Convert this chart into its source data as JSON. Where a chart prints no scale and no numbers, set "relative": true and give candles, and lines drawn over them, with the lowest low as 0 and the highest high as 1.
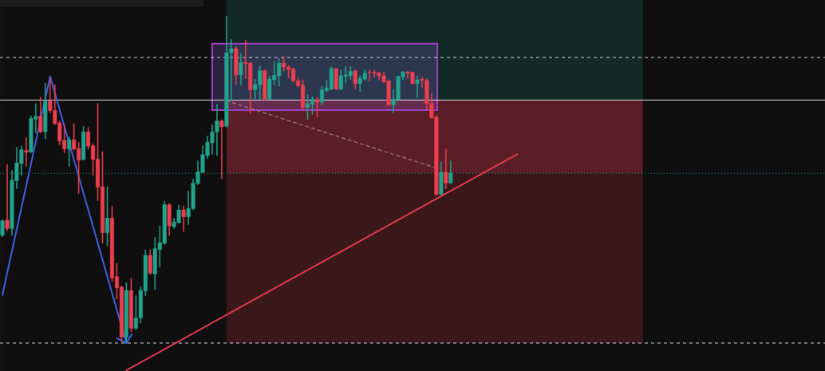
{
  "chart_data": {
    "type": "candlestick",
    "relative": true,
    "categories": [
      null,
      null,
      null,
      null,
      null,
      null,
      null,
      null,
      null,
      null,
      null,
      null,
      null,
      null,
      null,
      null,
      null,
      null,
      null,
      null,
      null,
      null,
      null,
      null,
      null,
      null,
      null,
      null,
      null,
      null,
      null,
      null,
      null,
      null,
      null,
      null,
      null,
      null,
      null,
      null,
      null,
      null,
      null,
      null,
      null,
      null,
      null,
      null,
      null,
      null,
      null,
      null,
      null,
      null,
      null,
      null,
      null,
      null,
      null,
      null,
      null,
      null,
      null,
      null,
      null,
      null,
      null,
      null,
      null,
      null,
      null,
      null,
      null,
      null,
      null,
      null,
      null,
      null,
      null,
      null,
      null,
      null,
      null,
      null,
      null,
      null,
      null,
      null,
      null,
      null,
      null,
      null,
      null,
      null,
      null,
      null,
      null,
      null,
      null,
      null,
      null,
      null,
      null,
      null,
      null,
      null,
      null,
      null,
      null,
      null,
      null,
      null,
      null,
      null,
      null,
      null,
      null,
      null,
      null,
      null,
      null,
      null,
      null,
      null,
      null,
      null,
      null,
      null,
      null,
      null,
      null,
      null,
      null,
      null,
      null,
      null,
      null,
      null,
      null,
      null,
      null,
      null,
      null,
      null,
      null,
      null,
      null,
      null,
      null,
      null,
      null,
      null,
      null,
      null,
      null,
      null,
      null,
      null,
      null,
      null,
      null,
      null,
      null,
      null,
      null,
      null,
      null,
      null,
      null,
      null,
      null,
      null,
      null
    ],
    "ohlc": [
      [
        0.329,
        0.378,
        0.325,
        0.374
      ],
      [
        0.376,
        0.546,
        0.343,
        0.35
      ],
      [
        0.35,
        0.528,
        0.329,
        0.498
      ],
      [
        0.496,
        0.598,
        0.472,
        0.551
      ],
      [
        0.549,
        0.603,
        0.512,
        0.591
      ],
      [
        0.589,
        0.628,
        0.541,
        0.583
      ],
      [
        0.584,
        0.695,
        0.581,
        0.687
      ],
      [
        0.685,
        0.732,
        0.642,
        0.693
      ],
      [
        0.693,
        0.752,
        0.642,
        0.646
      ],
      [
        0.646,
        0.795,
        0.624,
        0.74
      ],
      [
        0.74,
        0.809,
        0.703,
        0.711
      ],
      [
        0.711,
        0.79,
        0.667,
        0.671
      ],
      [
        0.673,
        0.679,
        0.606,
        0.618
      ],
      [
        0.62,
        0.667,
        0.581,
        0.593
      ],
      [
        0.593,
        0.63,
        0.541,
        0.622
      ],
      [
        0.622,
        0.671,
        0.589,
        0.593
      ],
      [
        0.595,
        0.614,
        0.457,
        0.559
      ],
      [
        0.561,
        0.663,
        0.559,
        0.646
      ],
      [
        0.646,
        0.659,
        0.593,
        0.602
      ],
      [
        0.603,
        0.61,
        0.512,
        0.561
      ],
      [
        0.563,
        0.733,
        0.435,
        0.476
      ],
      [
        0.478,
        0.585,
        0.305,
        0.337
      ],
      [
        0.337,
        0.478,
        0.297,
        0.382
      ],
      [
        0.382,
        0.419,
        0.187,
        0.199
      ],
      [
        0.203,
        0.244,
        0.134,
        0.169
      ],
      [
        0.171,
        0.175,
        0.004,
        0.018
      ],
      [
        0.018,
        0.185,
        0.0,
        0.161
      ],
      [
        0.161,
        0.199,
        0.034,
        0.045
      ],
      [
        0.045,
        0.145,
        0.041,
        0.077
      ],
      [
        0.077,
        0.172,
        0.061,
        0.161
      ],
      [
        0.159,
        0.285,
        0.145,
        0.268
      ],
      [
        0.268,
        0.286,
        0.21,
        0.213
      ],
      [
        0.211,
        0.323,
        0.163,
        0.289
      ],
      [
        0.286,
        0.358,
        0.232,
        0.307
      ],
      [
        0.305,
        0.433,
        0.302,
        0.423
      ],
      [
        0.423,
        0.427,
        0.329,
        0.358
      ],
      [
        0.356,
        0.382,
        0.35,
        0.37
      ],
      [
        0.368,
        0.421,
        0.366,
        0.407
      ],
      [
        0.407,
        0.419,
        0.341,
        0.386
      ],
      [
        0.386,
        0.465,
        0.362,
        0.411
      ],
      [
        0.411,
        0.502,
        0.407,
        0.489
      ],
      [
        0.488,
        0.557,
        0.484,
        0.524
      ],
      [
        0.522,
        0.603,
        0.52,
        0.576
      ],
      [
        0.573,
        0.633,
        0.563,
        0.614
      ],
      [
        0.612,
        0.667,
        0.577,
        0.646
      ],
      [
        0.645,
        0.73,
        0.573,
        0.679
      ],
      [
        0.679,
        0.683,
        0.502,
        0.661
      ],
      [
        0.663,
        1.0,
        0.66,
        0.888
      ],
      [
        0.888,
        0.928,
        0.74,
        0.9
      ],
      [
        0.9,
        0.907,
        0.79,
        0.82
      ],
      [
        0.82,
        0.886,
        0.789,
        0.858
      ],
      [
        0.858,
        0.927,
        0.809,
        0.854
      ],
      [
        0.856,
        0.858,
        0.701,
        0.774
      ],
      [
        0.774,
        0.807,
        0.746,
        0.79
      ],
      [
        0.789,
        0.847,
        0.746,
        0.833
      ],
      [
        0.833,
        0.836,
        0.741,
        0.746
      ],
      [
        0.746,
        0.817,
        0.746,
        0.807
      ],
      [
        0.805,
        0.862,
        0.79,
        0.819
      ],
      [
        0.817,
        0.87,
        0.785,
        0.856
      ],
      [
        0.856,
        0.876,
        0.831,
        0.844
      ],
      [
        0.844,
        0.85,
        0.811,
        0.836
      ],
      [
        0.839,
        0.841,
        0.798,
        0.801
      ],
      [
        0.802,
        0.813,
        0.782,
        0.787
      ],
      [
        0.789,
        0.805,
        0.714,
        0.72
      ],
      [
        0.72,
        0.76,
        0.683,
        0.732
      ],
      [
        0.73,
        0.754,
        0.699,
        0.746
      ],
      [
        0.744,
        0.752,
        0.691,
        0.736
      ],
      [
        0.736,
        0.787,
        0.728,
        0.774
      ],
      [
        0.772,
        0.805,
        0.768,
        0.78
      ],
      [
        0.776,
        0.844,
        0.774,
        0.839
      ],
      [
        0.839,
        0.841,
        0.774,
        0.776
      ],
      [
        0.776,
        0.836,
        0.774,
        0.817
      ],
      [
        0.815,
        0.846,
        0.795,
        0.82
      ],
      [
        0.817,
        0.846,
        0.805,
        0.831
      ],
      [
        0.832,
        0.836,
        0.776,
        0.793
      ],
      [
        0.793,
        0.817,
        0.768,
        0.809
      ],
      [
        0.807,
        0.836,
        0.803,
        0.825
      ],
      [
        0.829,
        0.836,
        0.801,
        0.827
      ],
      [
        0.828,
        0.836,
        0.813,
        0.825
      ],
      [
        0.825,
        0.829,
        0.805,
        0.817
      ],
      [
        0.817,
        0.828,
        0.795,
        0.798
      ],
      [
        0.801,
        0.805,
        0.725,
        0.728
      ],
      [
        0.728,
        0.776,
        0.703,
        0.746
      ],
      [
        0.744,
        0.817,
        0.74,
        0.815
      ],
      [
        0.813,
        0.831,
        0.805,
        0.828
      ],
      [
        0.829,
        0.831,
        0.809,
        0.825
      ],
      [
        0.828,
        0.829,
        0.79,
        0.793
      ],
      [
        0.793,
        0.817,
        0.75,
        0.805
      ],
      [
        0.807,
        0.813,
        0.782,
        0.803
      ],
      [
        0.803,
        0.809,
        0.714,
        0.732
      ],
      [
        0.733,
        0.764,
        0.687,
        0.689
      ],
      [
        0.691,
        0.695,
        0.451,
        0.454
      ],
      [
        0.455,
        0.554,
        0.451,
        0.522
      ],
      [
        0.522,
        0.593,
        0.472,
        0.489
      ],
      [
        0.489,
        0.557,
        0.488,
        0.52
      ],
      null,
      null,
      null,
      null,
      null,
      null,
      null,
      null,
      null,
      null,
      null,
      null,
      null,
      null,
      null,
      null,
      null,
      null,
      null,
      null,
      null,
      null,
      null,
      null,
      null,
      null,
      null,
      null,
      null,
      null,
      null,
      null,
      null,
      null,
      null,
      null,
      null,
      null,
      null,
      null,
      null,
      null,
      null,
      null,
      null,
      null,
      null,
      null,
      null,
      null,
      null,
      null,
      null,
      null,
      null,
      null,
      null,
      null,
      null,
      null,
      null,
      null,
      null,
      null,
      null,
      null,
      null,
      null,
      null,
      null,
      null,
      null,
      null,
      null,
      null,
      null,
      null,
      null
    ],
    "colors": [
      "#22a38c",
      "#ec3f4f",
      "#22a38c",
      "#22a38c",
      "#22a38c",
      "#ec3f4f",
      "#22a38c",
      "#22a38c",
      "#ec3f4f",
      "#22a38c",
      "#ec3f4f",
      "#ec3f4f",
      "#ec3f4f",
      "#ec3f4f",
      "#22a38c",
      "#ec3f4f",
      "#ec3f4f",
      "#22a38c",
      "#ec3f4f",
      "#ec3f4f",
      "#ec3f4f",
      "#ec3f4f",
      "#22a38c",
      "#ec3f4f",
      "#ec3f4f",
      "#ec3f4f",
      "#22a38c",
      "#ec3f4f",
      "#22a38c",
      "#22a38c",
      "#22a38c",
      "#ec3f4f",
      "#22a38c",
      "#22a38c",
      "#22a38c",
      "#ec3f4f",
      "#22a38c",
      "#22a38c",
      "#ec3f4f",
      "#22a38c",
      "#22a38c",
      "#22a38c",
      "#22a38c",
      "#22a38c",
      "#22a38c",
      "#22a38c",
      "#ec3f4f",
      "#22a38c",
      "#22a38c",
      "#ec3f4f",
      "#22a38c",
      "#ec3f4f",
      "#ec3f4f",
      "#22a38c",
      "#22a38c",
      "#ec3f4f",
      "#22a38c",
      "#22a38c",
      "#22a38c",
      "#ec3f4f",
      "#ec3f4f",
      "#ec3f4f",
      "#ec3f4f",
      "#ec3f4f",
      "#22a38c",
      "#22a38c",
      "#ec3f4f",
      "#22a38c",
      "#22a38c",
      "#22a38c",
      "#ec3f4f",
      "#22a38c",
      "#22a38c",
      "#22a38c",
      "#ec3f4f",
      "#22a38c",
      "#22a38c",
      "#ec3f4f",
      "#ec3f4f",
      "#ec3f4f",
      "#ec3f4f",
      "#ec3f4f",
      "#22a38c",
      "#22a38c",
      "#22a38c",
      "#ec3f4f",
      "#ec3f4f",
      "#22a38c",
      "#ec3f4f",
      "#ec3f4f",
      "#ec3f4f",
      "#ec3f4f",
      "#22a38c",
      "#ec3f4f",
      "#22a38c",
      null,
      null,
      null,
      null,
      null,
      null,
      null,
      null,
      null,
      null,
      null,
      null,
      null,
      null,
      null,
      null,
      null,
      null,
      null,
      null,
      null,
      null,
      null,
      null,
      null,
      null,
      null,
      null,
      null,
      null,
      null,
      null,
      null,
      null,
      null,
      null,
      null,
      null,
      null,
      null,
      null,
      null,
      null,
      null,
      null,
      null,
      null,
      null,
      null,
      null,
      null,
      null,
      null,
      null,
      null,
      null,
      null,
      null,
      null,
      null,
      null,
      null,
      null,
      null,
      null,
      null,
      null,
      null,
      null,
      null,
      null,
      null,
      null,
      null,
      null,
      null,
      null,
      null
    ],
    "series": [
      {
        "type": "line",
        "color": "#3f5fe0",
        "values": [
          0.147,
          null,
          null,
          null,
          null,
          null,
          null,
          null,
          null,
          null,
          0.815,
          null,
          null,
          null,
          null,
          null,
          null,
          null,
          null,
          null,
          null,
          null,
          null,
          null,
          null,
          null,
          0.0,
          null,
          null,
          null,
          null,
          null,
          null,
          null,
          null,
          null,
          null,
          null,
          null,
          null,
          null,
          null,
          null,
          null,
          null,
          null,
          null,
          null,
          null,
          null,
          null,
          null,
          null,
          null,
          null,
          null,
          null,
          null,
          null,
          null,
          null,
          null,
          null,
          null,
          null,
          null,
          null,
          null,
          null,
          null,
          null,
          null,
          null,
          null,
          null,
          null,
          null,
          null,
          null,
          null,
          null,
          null,
          null,
          null,
          null,
          null,
          null,
          null,
          null,
          null,
          null,
          null,
          null,
          null,
          null,
          null,
          null,
          null,
          null,
          null,
          null,
          null,
          null,
          null,
          null,
          null,
          null,
          null,
          null,
          null,
          null,
          null,
          null,
          null,
          null,
          null,
          null,
          null,
          null,
          null,
          null,
          null,
          null,
          null,
          null,
          null,
          null,
          null,
          null,
          null,
          null,
          null,
          null,
          null,
          null,
          null,
          null,
          null,
          null,
          null,
          null,
          null,
          null,
          null,
          null,
          null,
          null,
          null,
          null,
          null,
          null,
          null,
          null,
          null,
          null,
          null,
          null,
          null,
          null,
          null,
          null,
          null,
          null,
          null,
          null,
          null,
          null,
          null,
          null,
          null,
          null,
          null,
          null
        ]
      },
      {
        "type": "line",
        "color": "#e03a4e",
        "values": [
          null,
          null,
          null,
          null,
          null,
          null,
          null,
          null,
          null,
          null,
          null,
          null,
          null,
          null,
          null,
          null,
          null,
          null,
          null,
          null,
          null,
          null,
          null,
          null,
          null,
          null,
          -0.083,
          null,
          null,
          null,
          null,
          null,
          null,
          null,
          null,
          null,
          null,
          null,
          null,
          null,
          null,
          null,
          null,
          null,
          null,
          null,
          null,
          null,
          null,
          null,
          null,
          null,
          null,
          null,
          null,
          null,
          null,
          null,
          null,
          null,
          null,
          null,
          null,
          null,
          null,
          null,
          null,
          null,
          null,
          null,
          null,
          null,
          null,
          null,
          null,
          null,
          null,
          null,
          null,
          null,
          null,
          null,
          null,
          null,
          null,
          null,
          null,
          null,
          null,
          null,
          null,
          null,
          null,
          null,
          null,
          null,
          null,
          null,
          null,
          null,
          null,
          null,
          null,
          null,
          null,
          null,
          null,
          null,
          0.578,
          null,
          null,
          null,
          null,
          null,
          null,
          null,
          null,
          null,
          null,
          null,
          null,
          null,
          null,
          null,
          null,
          null,
          null,
          null,
          null,
          null,
          null,
          null,
          null,
          null,
          null,
          null,
          null,
          null,
          null,
          null,
          null,
          null,
          null,
          null,
          null,
          null,
          null,
          null,
          null,
          null,
          null,
          null,
          null,
          null,
          null,
          null,
          null,
          null,
          null,
          null,
          null,
          null,
          null,
          null,
          null,
          null,
          null,
          null,
          null,
          null,
          null,
          null,
          null
        ]
      },
      {
        "type": "line",
        "color": "#9a8088",
        "line_style": "dashed",
        "values": [
          null,
          null,
          null,
          null,
          null,
          null,
          null,
          null,
          null,
          null,
          null,
          null,
          null,
          null,
          null,
          null,
          null,
          null,
          null,
          null,
          null,
          null,
          null,
          null,
          null,
          null,
          null,
          null,
          null,
          null,
          null,
          null,
          null,
          null,
          null,
          null,
          null,
          null,
          null,
          null,
          null,
          null,
          null,
          null,
          null,
          null,
          null,
          0.741,
          null,
          null,
          null,
          null,
          null,
          null,
          null,
          null,
          null,
          null,
          null,
          null,
          null,
          null,
          null,
          null,
          null,
          null,
          null,
          null,
          null,
          null,
          null,
          null,
          null,
          null,
          null,
          null,
          null,
          null,
          null,
          null,
          null,
          null,
          null,
          null,
          null,
          null,
          null,
          null,
          null,
          null,
          null,
          0.535,
          null,
          null,
          null,
          null,
          null,
          null,
          null,
          null,
          null,
          null,
          null,
          null,
          null,
          null,
          null,
          null,
          null,
          null,
          null,
          null,
          null,
          null,
          null,
          null,
          null,
          null,
          null,
          null,
          null,
          null,
          null,
          null,
          null,
          null,
          null,
          null,
          null,
          null,
          null,
          null,
          null,
          null,
          null,
          null,
          null,
          null,
          null,
          null,
          null,
          null,
          null,
          null,
          null,
          null,
          null,
          null,
          null,
          null,
          null,
          null,
          null,
          null,
          null,
          null,
          null,
          null,
          null,
          null,
          null,
          null,
          null,
          null,
          null,
          null,
          null,
          null,
          null,
          null,
          null,
          null,
          null
        ]
      }
    ],
    "ref_lines": [
      {
        "axis": "y",
        "value": 0.873,
        "color": "#d1d4dc",
        "line_style": "dashed"
      },
      {
        "axis": "y",
        "value": 0.743,
        "color": "#f0f0f0",
        "line_style": "solid"
      },
      {
        "axis": "y",
        "value": 0.519,
        "color": "#2a9d8f",
        "line_style": "dotted"
      },
      {
        "axis": "y",
        "value": 0.0,
        "color": "#d1d4dc",
        "line_style": "dashed"
      }
    ]
  }
}
